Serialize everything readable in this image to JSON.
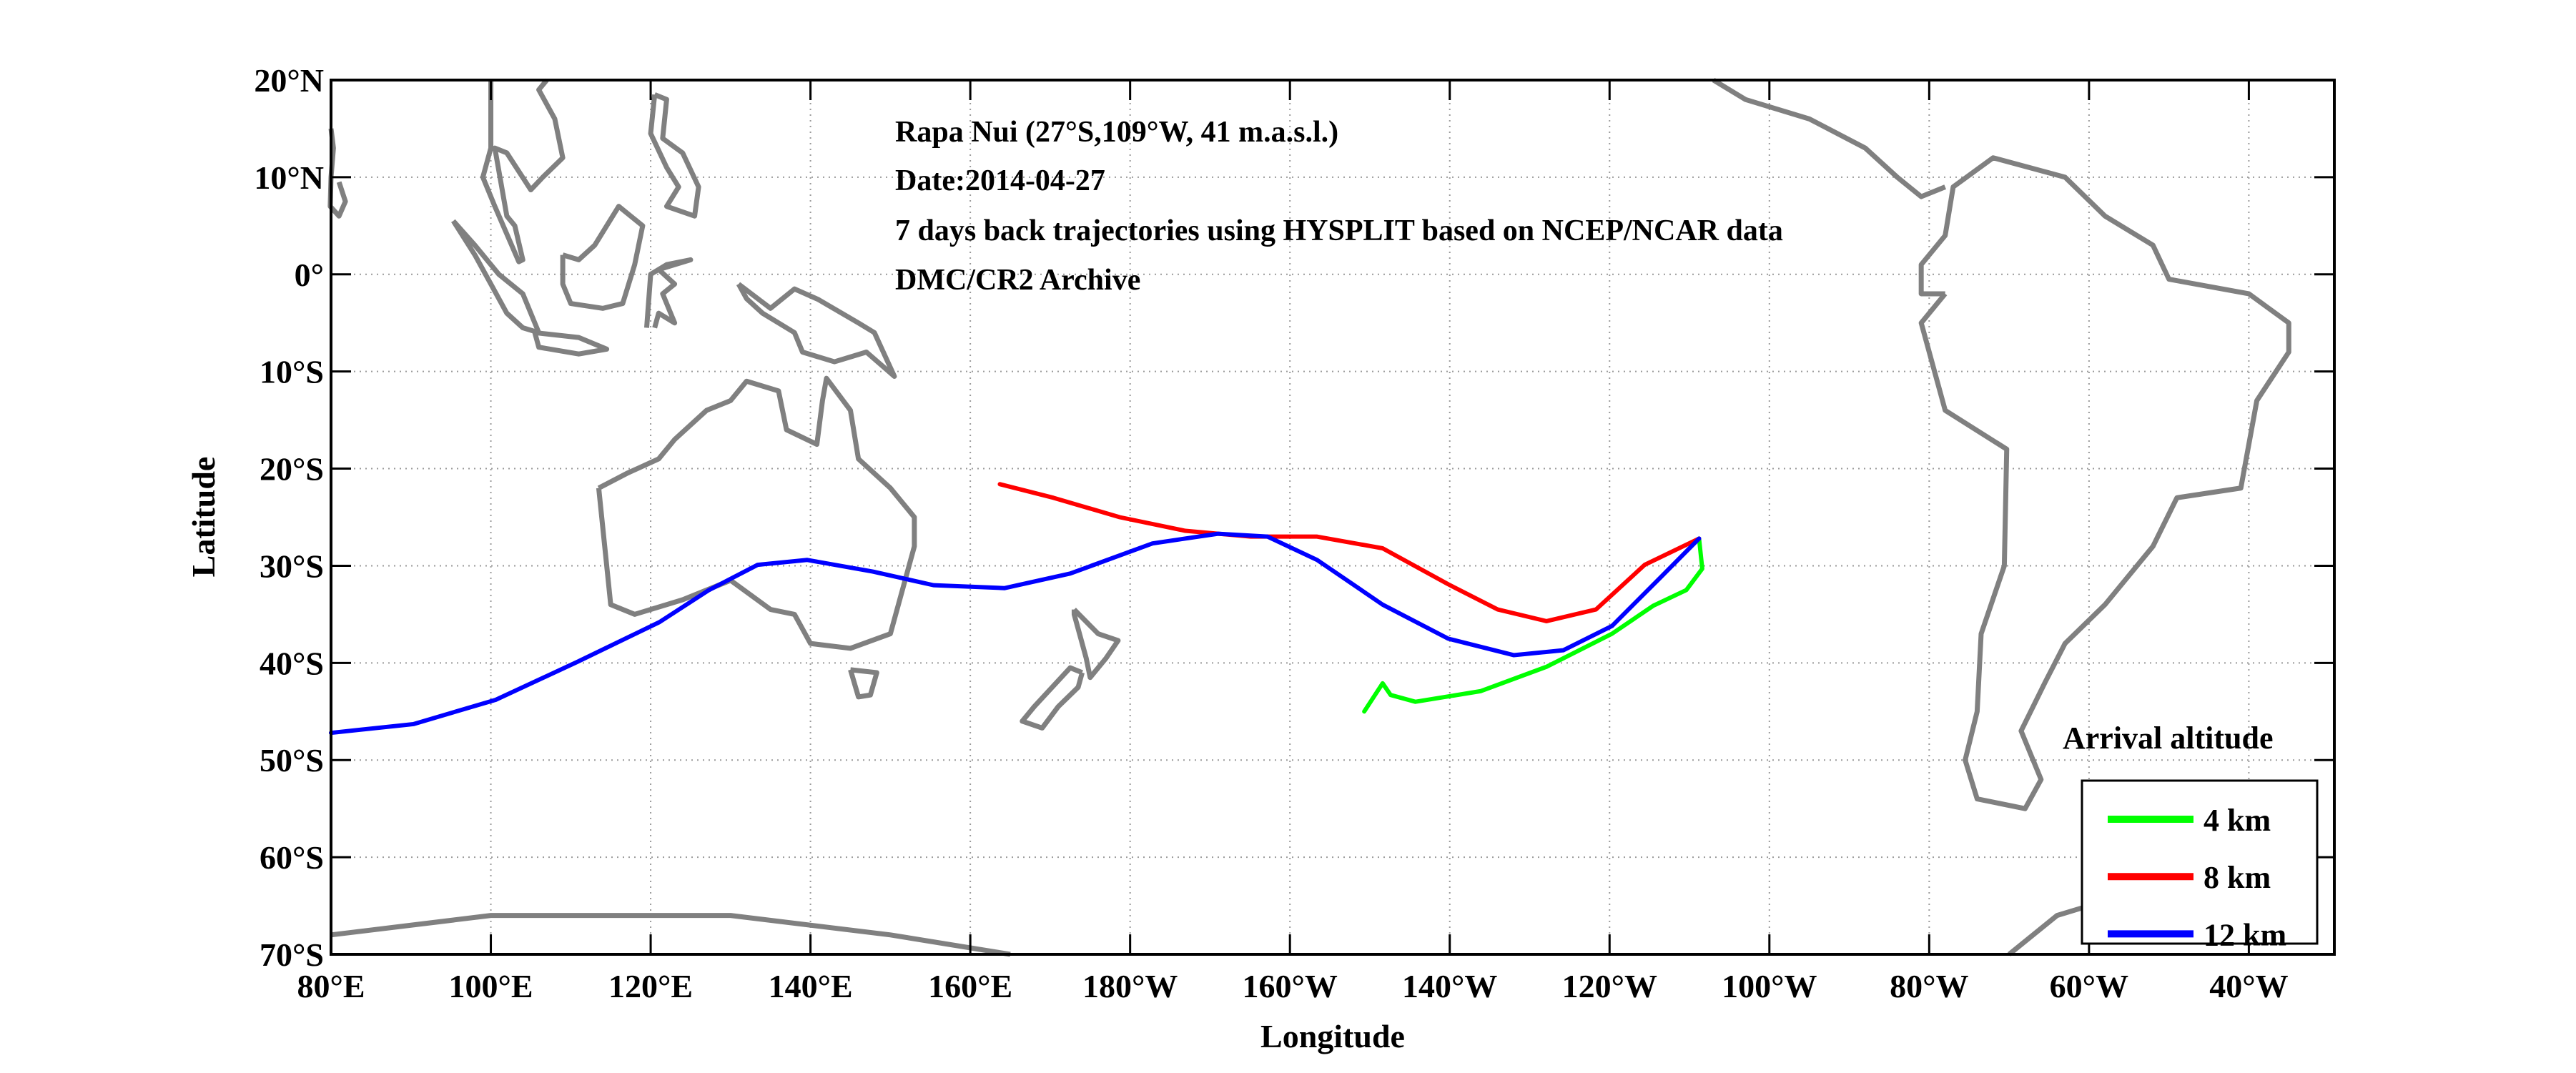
{
  "chart_data": {
    "type": "line",
    "annotation": [
      "Rapa Nui (27°S,109°W, 41 m.a.s.l.)",
      "Date:2014-04-27",
      "7 days back trajectories using HYSPLIT based on NCEP/NCAR data",
      "DMC/CR2 Archive"
    ],
    "xlabel": "Longitude",
    "ylabel": "Latitude",
    "xlim": [
      80,
      330.7
    ],
    "ylim": [
      -70,
      20
    ],
    "grid": true,
    "x_ticks": [
      {
        "value": 80,
        "label": "80°E"
      },
      {
        "value": 100,
        "label": "100°E"
      },
      {
        "value": 120,
        "label": "120°E"
      },
      {
        "value": 140,
        "label": "140°E"
      },
      {
        "value": 160,
        "label": "160°E"
      },
      {
        "value": 180,
        "label": "180°W"
      },
      {
        "value": 200,
        "label": "160°W"
      },
      {
        "value": 220,
        "label": "140°W"
      },
      {
        "value": 240,
        "label": "120°W"
      },
      {
        "value": 260,
        "label": "100°W"
      },
      {
        "value": 280,
        "label": "80°W"
      },
      {
        "value": 300,
        "label": "60°W"
      },
      {
        "value": 320,
        "label": "40°W"
      }
    ],
    "y_ticks": [
      {
        "value": 20,
        "label": "20°N"
      },
      {
        "value": 10,
        "label": "10°N"
      },
      {
        "value": 0,
        "label": "0°"
      },
      {
        "value": -10,
        "label": "10°S"
      },
      {
        "value": -20,
        "label": "20°S"
      },
      {
        "value": -30,
        "label": "30°S"
      },
      {
        "value": -40,
        "label": "40°S"
      },
      {
        "value": -50,
        "label": "50°S"
      },
      {
        "value": -60,
        "label": "60°S"
      },
      {
        "value": -70,
        "label": "70°S"
      }
    ],
    "legend": {
      "title": "Arrival altitude",
      "placement": "bottom-right"
    },
    "series": [
      {
        "name": "4 km",
        "color": "#00ff00",
        "lon": [
          209.3,
          211.6,
          212.6,
          215.7,
          223.9,
          232.1,
          240.3,
          245.5,
          249.6,
          251.6,
          251.2
        ],
        "lat": [
          -45,
          -42.1,
          -43.3,
          -44,
          -42.9,
          -40.4,
          -37,
          -34.1,
          -32.5,
          -30.3,
          -27.2
        ]
      },
      {
        "name": "8 km",
        "color": "#ff0000",
        "lon": [
          163.7,
          170.4,
          178.7,
          186.9,
          195.1,
          203.4,
          211.6,
          219.8,
          226,
          232.1,
          238.3,
          244.4,
          251.2
        ],
        "lat": [
          -21.6,
          -23,
          -25,
          -26.4,
          -27,
          -27,
          -28.2,
          -31.9,
          -34.5,
          -35.7,
          -34.5,
          -29.9,
          -27.2
        ]
      },
      {
        "name": "12 km",
        "color": "#0000ff",
        "lon": [
          80,
          90.3,
          100.6,
          110.8,
          121.1,
          127.3,
          133.4,
          139.6,
          147.8,
          155.4,
          164.3,
          172.5,
          182.8,
          191,
          197.2,
          203.4,
          211.6,
          219.8,
          228,
          234.2,
          240.3,
          246.5,
          251.2
        ],
        "lat": [
          -47.2,
          -46.3,
          -43.8,
          -39.9,
          -35.8,
          -32.5,
          -29.9,
          -29.4,
          -30.6,
          -32,
          -32.3,
          -30.8,
          -27.7,
          -26.7,
          -27,
          -29.4,
          -34,
          -37.5,
          -39.2,
          -38.7,
          -36.2,
          -31.1,
          -27.2
        ]
      }
    ],
    "coastlines": [
      [
        [
          113.5,
          -22
        ],
        [
          114,
          -26
        ],
        [
          115,
          -34
        ],
        [
          118,
          -35
        ],
        [
          124,
          -33.5
        ],
        [
          130,
          -31.5
        ],
        [
          135,
          -34.5
        ],
        [
          138,
          -35
        ],
        [
          140,
          -38
        ],
        [
          145,
          -38.5
        ],
        [
          150,
          -37
        ],
        [
          153,
          -28
        ],
        [
          153,
          -25
        ],
        [
          150,
          -22
        ],
        [
          146,
          -19
        ],
        [
          145,
          -14
        ],
        [
          142,
          -10.7
        ],
        [
          141.5,
          -13
        ],
        [
          140.8,
          -17.5
        ],
        [
          137,
          -16
        ],
        [
          136,
          -12
        ],
        [
          132,
          -11
        ],
        [
          130,
          -13
        ],
        [
          127,
          -14
        ],
        [
          123,
          -17
        ],
        [
          121,
          -19
        ],
        [
          117,
          -20.5
        ],
        [
          113.5,
          -22
        ]
      ],
      [
        [
          145,
          -40.7
        ],
        [
          148.3,
          -41
        ],
        [
          147.5,
          -43.3
        ],
        [
          146,
          -43.5
        ],
        [
          145,
          -40.7
        ]
      ],
      [
        [
          173,
          -34.5
        ],
        [
          176,
          -37
        ],
        [
          178.5,
          -37.7
        ],
        [
          177,
          -39.5
        ],
        [
          175,
          -41.5
        ],
        [
          174.5,
          -39.5
        ],
        [
          173,
          -35
        ],
        [
          173,
          -34.5
        ]
      ],
      [
        [
          174,
          -41
        ],
        [
          172.5,
          -40.5
        ],
        [
          168,
          -44.5
        ],
        [
          166.5,
          -46
        ],
        [
          169,
          -46.7
        ],
        [
          171,
          -44.5
        ],
        [
          173.5,
          -42.5
        ],
        [
          174,
          -41
        ]
      ],
      [
        [
          282,
          -2
        ],
        [
          279,
          -5
        ],
        [
          282,
          -14
        ],
        [
          289.7,
          -18
        ],
        [
          289.4,
          -30
        ],
        [
          286.5,
          -37
        ],
        [
          286,
          -45
        ],
        [
          284.5,
          -50
        ],
        [
          286,
          -54
        ],
        [
          292,
          -55
        ],
        [
          294,
          -52
        ],
        [
          291.5,
          -47
        ],
        [
          294.5,
          -42
        ],
        [
          297,
          -38
        ],
        [
          302,
          -34
        ],
        [
          308,
          -28
        ],
        [
          311,
          -23
        ],
        [
          319,
          -22
        ],
        [
          321,
          -13
        ],
        [
          325,
          -8
        ],
        [
          325,
          -5
        ],
        [
          320,
          -2
        ],
        [
          310,
          -0.5
        ],
        [
          308,
          3
        ],
        [
          302,
          6
        ],
        [
          297,
          10
        ],
        [
          288,
          12
        ],
        [
          283,
          9
        ],
        [
          282,
          4
        ],
        [
          279,
          1
        ],
        [
          279,
          -2
        ],
        [
          282,
          -2
        ]
      ],
      [
        [
          253,
          20
        ],
        [
          257,
          18
        ],
        [
          265,
          16
        ],
        [
          272,
          13
        ],
        [
          276,
          10
        ],
        [
          279,
          8
        ],
        [
          282,
          9
        ]
      ],
      [
        [
          80,
          15
        ],
        [
          80.3,
          13
        ],
        [
          80,
          10
        ],
        [
          79.9,
          7
        ],
        [
          81,
          6
        ],
        [
          81.8,
          7.5
        ],
        [
          81,
          9.5
        ]
      ],
      [
        [
          100,
          20
        ],
        [
          100,
          13
        ],
        [
          99,
          10
        ],
        [
          100.5,
          7
        ],
        [
          103.5,
          1.3
        ],
        [
          104,
          1.5
        ],
        [
          103,
          5
        ],
        [
          102,
          6
        ],
        [
          100.5,
          13
        ],
        [
          102,
          12.5
        ],
        [
          105,
          8.7
        ],
        [
          106.5,
          10
        ],
        [
          109,
          12
        ],
        [
          108,
          16
        ],
        [
          106,
          19
        ],
        [
          107,
          20
        ]
      ],
      [
        [
          95.3,
          5.5
        ],
        [
          98,
          3
        ],
        [
          101,
          0
        ],
        [
          104,
          -2
        ],
        [
          106,
          -6
        ],
        [
          104,
          -5.5
        ],
        [
          102,
          -4
        ],
        [
          100,
          -1
        ],
        [
          98,
          2
        ],
        [
          95.3,
          5.5
        ]
      ],
      [
        [
          105.5,
          -6
        ],
        [
          111,
          -6.5
        ],
        [
          114.5,
          -7.7
        ],
        [
          111,
          -8.2
        ],
        [
          106,
          -7.5
        ],
        [
          105.5,
          -6
        ]
      ],
      [
        [
          109,
          2
        ],
        [
          111,
          1.5
        ],
        [
          113,
          3
        ],
        [
          116,
          7
        ],
        [
          119,
          5
        ],
        [
          118,
          1
        ],
        [
          116.5,
          -3
        ],
        [
          114,
          -3.5
        ],
        [
          110,
          -3
        ],
        [
          109,
          -1
        ],
        [
          109,
          2
        ]
      ],
      [
        [
          119.5,
          -5.5
        ],
        [
          120,
          0
        ],
        [
          122,
          1
        ],
        [
          125,
          1.5
        ],
        [
          121,
          0.5
        ],
        [
          123,
          -1
        ],
        [
          121.5,
          -2
        ],
        [
          123,
          -5
        ],
        [
          121,
          -4
        ],
        [
          120.5,
          -5.5
        ]
      ],
      [
        [
          131,
          -1
        ],
        [
          135,
          -3.5
        ],
        [
          138,
          -1.5
        ],
        [
          141,
          -2.6
        ],
        [
          146,
          -5
        ],
        [
          148,
          -6
        ],
        [
          150.5,
          -10.5
        ],
        [
          147,
          -8
        ],
        [
          143,
          -9
        ],
        [
          139,
          -8
        ],
        [
          138,
          -6
        ],
        [
          134,
          -4
        ],
        [
          132,
          -2.5
        ],
        [
          131,
          -1
        ]
      ],
      [
        [
          120.5,
          18.5
        ],
        [
          122,
          18
        ],
        [
          121.5,
          14
        ],
        [
          124,
          12.5
        ],
        [
          126,
          9
        ],
        [
          125.5,
          6
        ],
        [
          122,
          7
        ],
        [
          123.5,
          9
        ],
        [
          122,
          11
        ],
        [
          120,
          14.5
        ],
        [
          120.5,
          18.5
        ]
      ],
      [
        [
          80,
          -68
        ],
        [
          90,
          -67
        ],
        [
          100,
          -66
        ],
        [
          110,
          -66
        ],
        [
          130,
          -66
        ],
        [
          150,
          -68
        ],
        [
          165,
          -70
        ]
      ],
      [
        [
          290,
          -70
        ],
        [
          296,
          -66
        ],
        [
          300,
          -65
        ],
        [
          305,
          -63
        ]
      ]
    ]
  }
}
